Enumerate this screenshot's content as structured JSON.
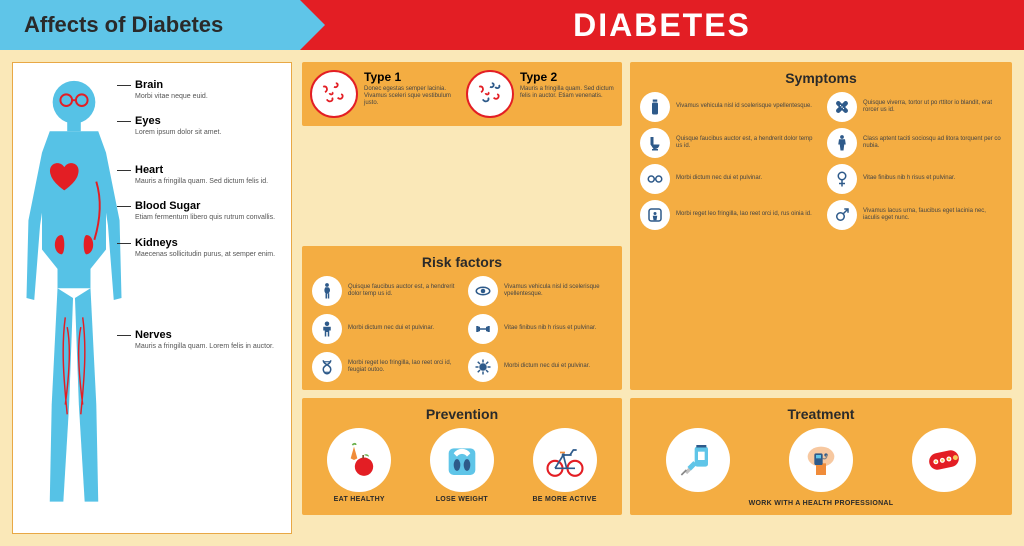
{
  "colors": {
    "background": "#fae8b8",
    "header_blue": "#5fc5e8",
    "header_red": "#e31e24",
    "panel_orange": "#f4ad42",
    "panel_white": "#ffffff",
    "icon_blue": "#2e5a8a",
    "icon_cyan": "#5fc5e8",
    "accent_red": "#e31e24",
    "text_dark": "#2a2a2a",
    "text_muted": "#555555"
  },
  "header": {
    "left_title": "Affects of Diabetes",
    "right_title": "DIABETES"
  },
  "body_diagram": {
    "labels": [
      {
        "title": "Brain",
        "desc": "Morbi vitae neque euid."
      },
      {
        "title": "Eyes",
        "desc": "Lorem ipsum dolor sit amet."
      },
      {
        "title": "Heart",
        "desc": "Mauris a fringilla quam. Sed dictum felis id."
      },
      {
        "title": "Blood Sugar",
        "desc": "Etiam fermentum libero quis rutrum convallis."
      },
      {
        "title": "Kidneys",
        "desc": "Maecenas sollicitudin purus, at semper enim."
      },
      {
        "title": "Nerves",
        "desc": "Mauris a fringilla quam. Lorem felis in auctor."
      }
    ]
  },
  "types": {
    "type1": {
      "title": "Type 1",
      "desc": "Donec egestas semper lacinia. Vivamus sceleri sque vestibulum justo.",
      "circle_color": "#e31e24",
      "squiggle_color": "#e31e24"
    },
    "type2": {
      "title": "Type 2",
      "desc": "Mauris a fringilla quam. Sed dictum felis in auctor. Etiam venenatis.",
      "circle_color": "#e31e24",
      "squiggle_color": "#2e5a8a"
    }
  },
  "symptoms": {
    "title": "Symptoms",
    "items": [
      {
        "icon": "bottle",
        "text": "Vivamus vehicula nisl id scelerisque vpellentesque."
      },
      {
        "icon": "bandage",
        "text": "Quisque viverra, tortor ut po rttitor io blandit, erat rorcer us id."
      },
      {
        "icon": "toilet",
        "text": "Quisque faucibus auctor est, a hendrerit dolor temp us id."
      },
      {
        "icon": "person-body",
        "text": "Class aptent taciti sociosqu ad litora torquent per co nubia."
      },
      {
        "icon": "glasses",
        "text": "Morbi dictum nec dui et pulvinar."
      },
      {
        "icon": "female",
        "text": "Vitae finibus nib h risus et pulvinar."
      },
      {
        "icon": "scale-person",
        "text": "Morbi reget leo fringilla, lao reet orci id, rus oinia id."
      },
      {
        "icon": "male",
        "text": "Vivamus lacus urna, faucibus eget lacinia nec, iaculis eget nunc."
      }
    ]
  },
  "risk_factors": {
    "title": "Risk factors",
    "items": [
      {
        "icon": "pregnant",
        "text": "Quisque faucibus auctor est, a hendrerit dolor temp us id."
      },
      {
        "icon": "eye",
        "text": "Vivamus vehicula nisl id scelerisque vpellentesque."
      },
      {
        "icon": "person",
        "text": "Morbi dictum nec dui et pulvinar."
      },
      {
        "icon": "dumbbell",
        "text": "Vitae finibus nib h risus et pulvinar."
      },
      {
        "icon": "dna",
        "text": "Morbi reget leo fringilla, lao reet orci id, feugiat outoo."
      },
      {
        "icon": "virus",
        "text": "Morbi dictum nec dui et pulvinar."
      }
    ]
  },
  "prevention": {
    "title": "Prevention",
    "items": [
      {
        "icon": "food",
        "label": "EAT HEALTHY"
      },
      {
        "icon": "scale",
        "label": "LOSE WEIGHT"
      },
      {
        "icon": "bicycle",
        "label": "BE MORE ACTIVE"
      }
    ]
  },
  "treatment": {
    "title": "Treatment",
    "caption": "WORK WITH A HEALTH PROFESSIONAL",
    "items": [
      {
        "icon": "syringe"
      },
      {
        "icon": "pump"
      },
      {
        "icon": "pills"
      }
    ]
  }
}
